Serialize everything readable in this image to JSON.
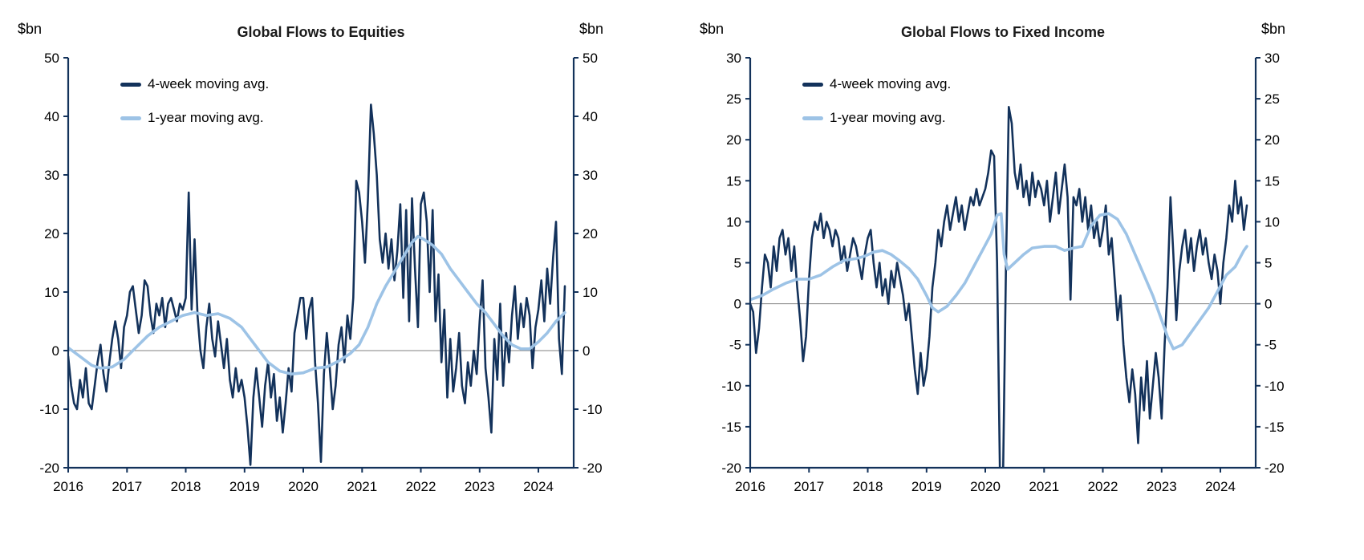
{
  "colors": {
    "axis": "#13325b",
    "zero_line": "#808080",
    "dark_series": "#13325b",
    "light_series": "#9dc3e6",
    "title_text": "#1a1a1a",
    "tick_text": "#000000"
  },
  "chart_data": [
    {
      "type": "line",
      "title": "Global Flows to Equities",
      "unit_left": "$bn",
      "unit_right": "$bn",
      "ylim": [
        -20,
        50
      ],
      "yticks": [
        -20,
        -10,
        0,
        10,
        20,
        30,
        40,
        50
      ],
      "xlim": [
        2016,
        2024.6
      ],
      "xticks": [
        2016,
        2017,
        2018,
        2019,
        2020,
        2021,
        2022,
        2023,
        2024
      ],
      "legend_position": "top-left-inside",
      "grid": false,
      "zero_line": true,
      "series": [
        {
          "name": "4-week moving avg.",
          "color": "#13325b",
          "width": 2.6,
          "x_start": 2016.0,
          "x_step": 0.05,
          "values": [
            -1,
            -6,
            -9,
            -10,
            -5,
            -8,
            -3,
            -9,
            -10,
            -6,
            -2,
            1,
            -4,
            -7,
            -2,
            2,
            5,
            2,
            -3,
            4,
            6,
            10,
            11,
            7,
            3,
            6,
            12,
            11,
            6,
            3,
            8,
            6,
            9,
            4,
            8,
            9,
            7,
            5,
            8,
            7,
            9,
            27,
            7,
            19,
            6,
            0,
            -3,
            4,
            8,
            2,
            -1,
            5,
            1,
            -3,
            2,
            -5,
            -8,
            -3,
            -7,
            -5,
            -8,
            -13,
            -19.5,
            -8,
            -3,
            -8,
            -13,
            -6,
            -2,
            -8,
            -4,
            -12,
            -8,
            -14,
            -9,
            -3,
            -7,
            3,
            6,
            9,
            9,
            2,
            7,
            9,
            -2,
            -9,
            -19,
            -4,
            3,
            -3,
            -10,
            -6,
            1,
            4,
            -2,
            6,
            2,
            9,
            29,
            27,
            22,
            15,
            26,
            42,
            37,
            30,
            19,
            15,
            20,
            14,
            19,
            12,
            17,
            25,
            9,
            24,
            5,
            26,
            14,
            4,
            25,
            27,
            22,
            10,
            24,
            5,
            13,
            -2,
            7,
            -8,
            2,
            -7,
            -3,
            3,
            -6,
            -9,
            -2,
            -6,
            0,
            -4,
            5,
            12,
            -3,
            -8,
            -14,
            2,
            -5,
            8,
            -6,
            3,
            -2,
            6,
            11,
            2,
            8,
            4,
            9,
            6,
            -3,
            4,
            7,
            12,
            5,
            14,
            8,
            16,
            22,
            2,
            -4,
            11
          ]
        },
        {
          "name": "1-year moving avg.",
          "color": "#9dc3e6",
          "width": 3.6,
          "points": [
            [
              2016.0,
              0.5
            ],
            [
              2016.2,
              -1
            ],
            [
              2016.4,
              -2.5
            ],
            [
              2016.55,
              -3
            ],
            [
              2016.75,
              -2.8
            ],
            [
              2016.95,
              -1.5
            ],
            [
              2017.15,
              0.5
            ],
            [
              2017.35,
              2.5
            ],
            [
              2017.55,
              4
            ],
            [
              2017.75,
              5
            ],
            [
              2017.95,
              6
            ],
            [
              2018.15,
              6.5
            ],
            [
              2018.35,
              6
            ],
            [
              2018.55,
              6.3
            ],
            [
              2018.75,
              5.5
            ],
            [
              2018.95,
              4
            ],
            [
              2019.1,
              2
            ],
            [
              2019.25,
              0
            ],
            [
              2019.4,
              -2
            ],
            [
              2019.6,
              -3.5
            ],
            [
              2019.8,
              -4
            ],
            [
              2020.0,
              -3.8
            ],
            [
              2020.2,
              -3
            ],
            [
              2020.4,
              -2.8
            ],
            [
              2020.6,
              -1.8
            ],
            [
              2020.8,
              -0.5
            ],
            [
              2020.95,
              1
            ],
            [
              2021.1,
              4
            ],
            [
              2021.25,
              8
            ],
            [
              2021.4,
              11
            ],
            [
              2021.55,
              13.5
            ],
            [
              2021.7,
              16
            ],
            [
              2021.85,
              18.5
            ],
            [
              2021.95,
              19.5
            ],
            [
              2022.05,
              19
            ],
            [
              2022.2,
              18
            ],
            [
              2022.35,
              16.5
            ],
            [
              2022.5,
              14
            ],
            [
              2022.65,
              12
            ],
            [
              2022.8,
              10
            ],
            [
              2022.95,
              8
            ],
            [
              2023.1,
              6.5
            ],
            [
              2023.25,
              4.5
            ],
            [
              2023.4,
              2.5
            ],
            [
              2023.55,
              1
            ],
            [
              2023.7,
              0.3
            ],
            [
              2023.85,
              0.3
            ],
            [
              2024.0,
              1.5
            ],
            [
              2024.15,
              3
            ],
            [
              2024.3,
              5
            ],
            [
              2024.45,
              6.5
            ]
          ]
        }
      ]
    },
    {
      "type": "line",
      "title": "Global Flows to Fixed Income",
      "unit_left": "$bn",
      "unit_right": "$bn",
      "ylim": [
        -20,
        30
      ],
      "yticks": [
        -20,
        -15,
        -10,
        -5,
        0,
        5,
        10,
        15,
        20,
        25,
        30
      ],
      "xlim": [
        2016,
        2024.6
      ],
      "xticks": [
        2016,
        2017,
        2018,
        2019,
        2020,
        2021,
        2022,
        2023,
        2024
      ],
      "legend_position": "top-left-inside",
      "grid": false,
      "zero_line": true,
      "series": [
        {
          "name": "4-week moving avg.",
          "color": "#13325b",
          "width": 2.6,
          "x_start": 2016.0,
          "x_step": 0.05,
          "values": [
            0,
            -1,
            -6,
            -3,
            2,
            6,
            5,
            2,
            7,
            4,
            8,
            9,
            6,
            8,
            4,
            7,
            2,
            -2,
            -7,
            -4,
            3,
            8,
            10,
            9,
            11,
            8,
            10,
            9,
            7,
            9,
            8,
            5,
            7,
            4,
            6,
            8,
            7,
            5,
            3,
            6,
            8,
            9,
            5,
            2,
            5,
            1,
            3,
            0,
            4,
            2,
            5,
            3,
            1,
            -2,
            0,
            -4,
            -8,
            -11,
            -6,
            -10,
            -8,
            -4,
            2,
            5,
            9,
            7,
            10,
            12,
            9,
            11,
            13,
            10,
            12,
            9,
            11,
            13,
            12,
            14,
            12,
            13,
            14,
            16,
            18.7,
            18,
            5,
            -21,
            -22,
            4,
            24,
            22,
            16,
            14,
            17,
            13,
            15,
            12,
            16,
            13,
            15,
            14,
            12,
            15,
            10,
            13,
            16,
            11,
            14,
            17,
            13,
            0.5,
            13,
            12,
            14,
            10,
            13,
            9,
            12,
            8,
            10,
            7,
            9,
            12,
            6,
            8,
            3,
            -2,
            1,
            -5,
            -9,
            -12,
            -8,
            -11,
            -17,
            -9,
            -13,
            -7,
            -14,
            -10,
            -6,
            -9,
            -14,
            -5,
            2,
            13,
            6,
            -2,
            4,
            7,
            9,
            5,
            8,
            4,
            7,
            9,
            6,
            8,
            5,
            3,
            6,
            4,
            0,
            5,
            8,
            12,
            10,
            15,
            11,
            13,
            9,
            12
          ]
        },
        {
          "name": "1-year moving avg.",
          "color": "#9dc3e6",
          "width": 3.6,
          "points": [
            [
              2016.0,
              0.5
            ],
            [
              2016.2,
              1
            ],
            [
              2016.4,
              1.8
            ],
            [
              2016.6,
              2.5
            ],
            [
              2016.8,
              3
            ],
            [
              2017.0,
              3
            ],
            [
              2017.2,
              3.5
            ],
            [
              2017.4,
              4.5
            ],
            [
              2017.6,
              5.3
            ],
            [
              2017.8,
              5.5
            ],
            [
              2017.95,
              5.8
            ],
            [
              2018.1,
              6.3
            ],
            [
              2018.25,
              6.5
            ],
            [
              2018.4,
              6
            ],
            [
              2018.55,
              5.2
            ],
            [
              2018.7,
              4.3
            ],
            [
              2018.85,
              3
            ],
            [
              2019.0,
              1
            ],
            [
              2019.1,
              -0.5
            ],
            [
              2019.2,
              -1
            ],
            [
              2019.35,
              -0.3
            ],
            [
              2019.5,
              1
            ],
            [
              2019.65,
              2.5
            ],
            [
              2019.8,
              4.5
            ],
            [
              2019.95,
              6.5
            ],
            [
              2020.1,
              8.5
            ],
            [
              2020.2,
              10.8
            ],
            [
              2020.27,
              11
            ],
            [
              2020.32,
              6
            ],
            [
              2020.38,
              4.2
            ],
            [
              2020.5,
              5
            ],
            [
              2020.65,
              6
            ],
            [
              2020.8,
              6.8
            ],
            [
              2021.0,
              7
            ],
            [
              2021.2,
              7
            ],
            [
              2021.35,
              6.5
            ],
            [
              2021.5,
              6.8
            ],
            [
              2021.65,
              7
            ],
            [
              2021.8,
              9.5
            ],
            [
              2021.95,
              10.8
            ],
            [
              2022.1,
              11
            ],
            [
              2022.25,
              10.3
            ],
            [
              2022.4,
              8.5
            ],
            [
              2022.55,
              6
            ],
            [
              2022.7,
              3.5
            ],
            [
              2022.85,
              1
            ],
            [
              2023.0,
              -2
            ],
            [
              2023.1,
              -4
            ],
            [
              2023.2,
              -5.5
            ],
            [
              2023.35,
              -5
            ],
            [
              2023.5,
              -3.5
            ],
            [
              2023.65,
              -2
            ],
            [
              2023.8,
              -0.5
            ],
            [
              2023.95,
              1.5
            ],
            [
              2024.1,
              3.5
            ],
            [
              2024.25,
              4.5
            ],
            [
              2024.4,
              6.5
            ],
            [
              2024.45,
              7
            ]
          ]
        }
      ]
    }
  ]
}
